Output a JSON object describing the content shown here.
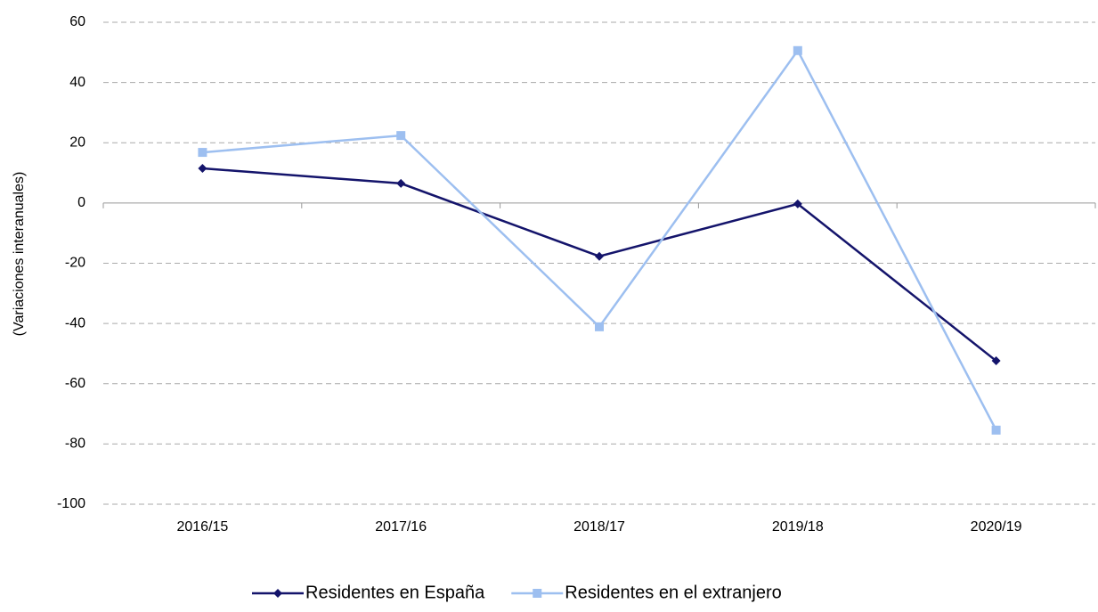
{
  "chart_data": {
    "type": "line",
    "y_label": "(Variaciones interanuales)",
    "categories": [
      "2016/15",
      "2017/16",
      "2018/17",
      "2019/18",
      "2020/19"
    ],
    "series": [
      {
        "name": "Residentes en España",
        "color": "#14146b",
        "marker": "diamond",
        "values": [
          11.5,
          6.5,
          -17.7,
          -0.3,
          -52.4
        ]
      },
      {
        "name": "Residentes en el extranjero",
        "color": "#9dbff0",
        "marker": "square",
        "values": [
          16.8,
          22.4,
          -41.1,
          50.6,
          -75.4
        ]
      }
    ],
    "ylim": [
      -100,
      60
    ],
    "yticks": [
      -100,
      -80,
      -60,
      -40,
      -20,
      0,
      20,
      40,
      60
    ],
    "grid": true,
    "legend": "bottom"
  }
}
